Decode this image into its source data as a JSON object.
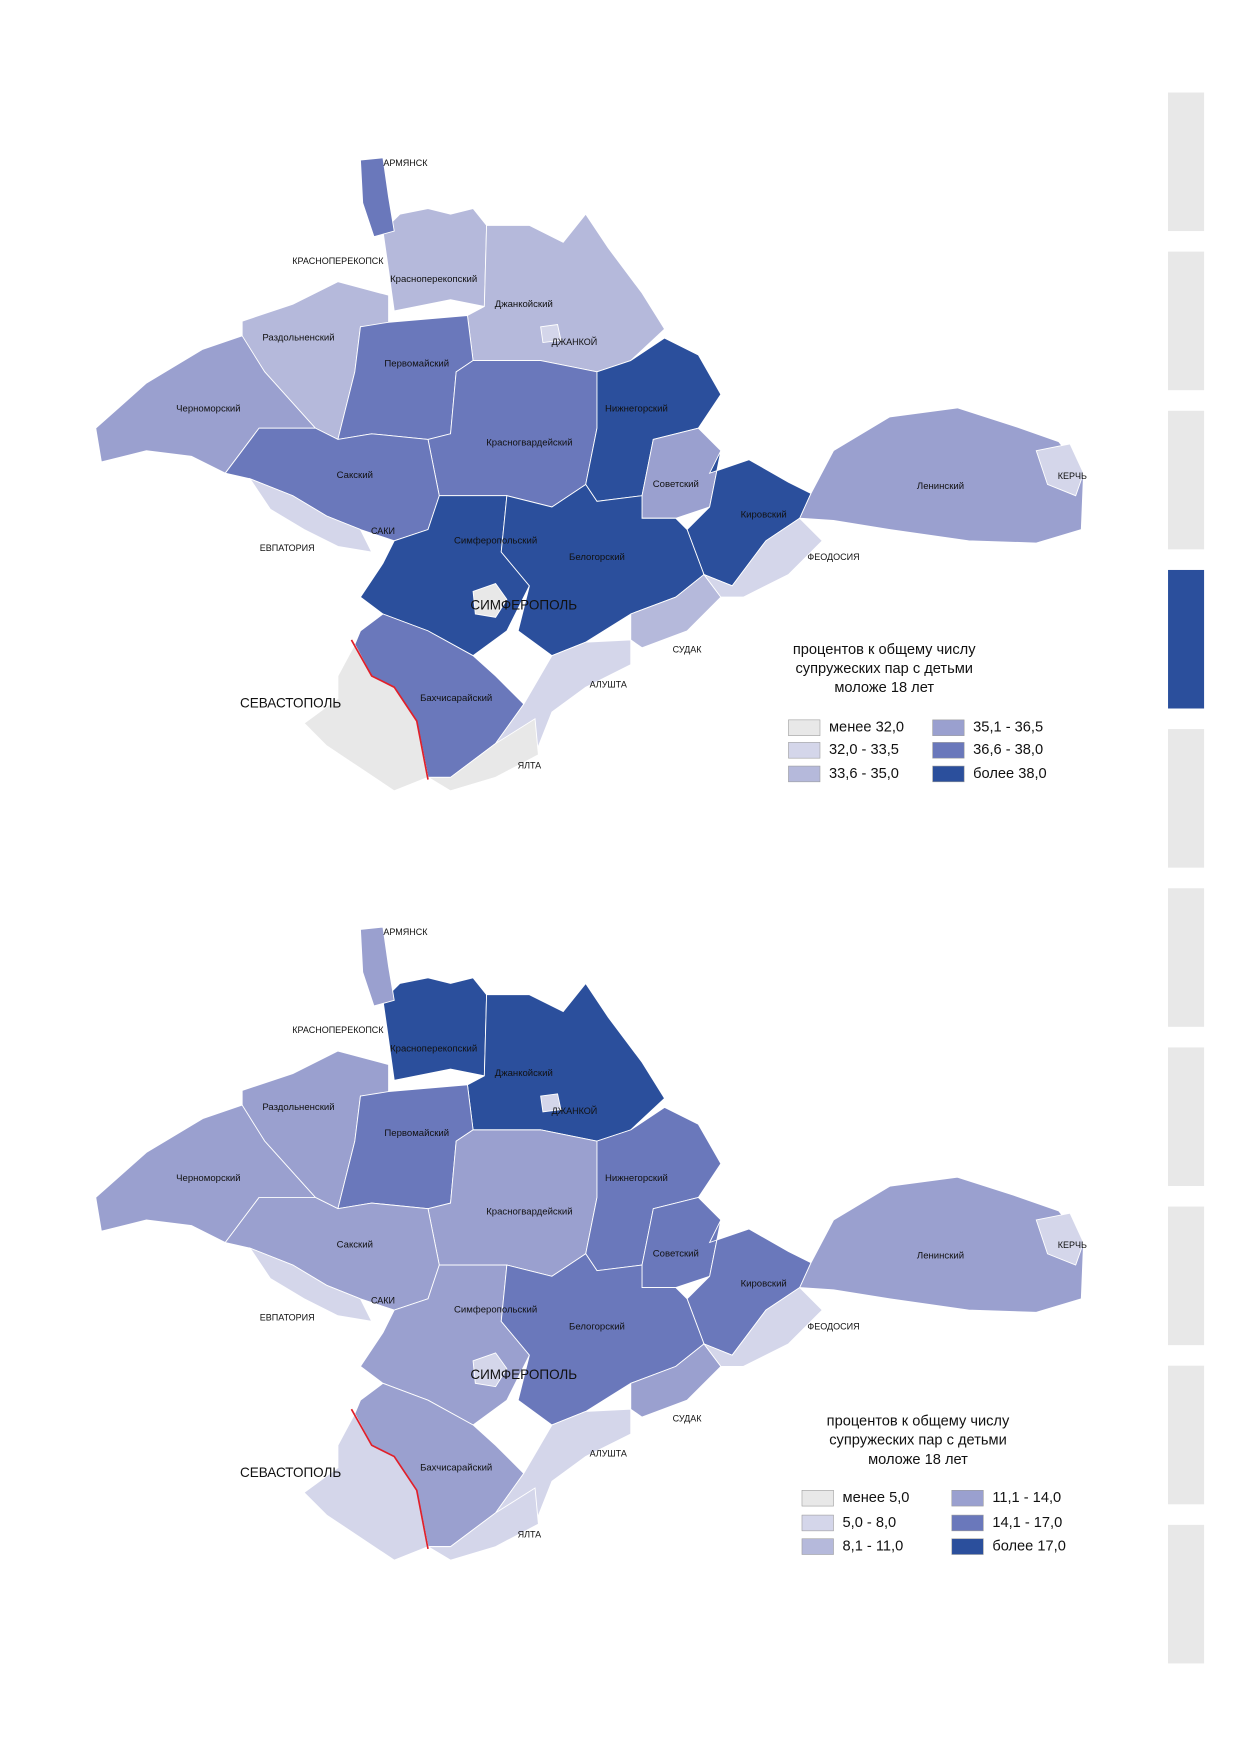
{
  "maps": [
    {
      "regions": [
        {
          "label": "Красноперекопский",
          "color": "#b5b9db"
        },
        {
          "label": "Джанкойский",
          "color": "#b5b9db"
        },
        {
          "label": "Раздольненский",
          "color": "#b5b9db"
        },
        {
          "label": "Черноморский",
          "color": "#9aa0cf"
        },
        {
          "label": "Первомайский",
          "color": "#6a78bb"
        },
        {
          "label": "Красногвардейский",
          "color": "#6a78bb"
        },
        {
          "label": "Нижнегорский",
          "color": "#2b4f9c"
        },
        {
          "label": "Советский",
          "color": "#9aa0cf"
        },
        {
          "label": "Кировский",
          "color": "#2b4f9c"
        },
        {
          "label": "Ленинский",
          "color": "#9aa0cf"
        },
        {
          "label": "Сакский",
          "color": "#6a78bb"
        },
        {
          "label": "Симферопольский",
          "color": "#2b4f9c"
        },
        {
          "label": "Белогорский",
          "color": "#2b4f9c"
        },
        {
          "label": "Бахчисарайский",
          "color": "#6a78bb"
        }
      ],
      "cities": [
        {
          "label": "АРМЯНСК",
          "color": "#6a78bb"
        },
        {
          "label": "КРАСНОПЕРЕКОПСК",
          "color": "#b5b9db"
        },
        {
          "label": "ДЖАНКОЙ",
          "color": "#d4d6ea"
        },
        {
          "label": "ЕВПАТОРИЯ",
          "color": "#d4d6ea"
        },
        {
          "label": "САКИ",
          "color": "#d4d6ea"
        },
        {
          "label": "СИМФЕРОПОЛЬ",
          "color": "#e8e8e8"
        },
        {
          "label": "СЕВАСТОПОЛЬ",
          "color": "#e8e8e8"
        },
        {
          "label": "АЛУШТА",
          "color": "#d4d6ea"
        },
        {
          "label": "СУДАК",
          "color": "#b5b9db"
        },
        {
          "label": "ЯЛТА",
          "color": "#e8e8e8"
        },
        {
          "label": "ФЕОДОСИЯ",
          "color": "#d4d6ea"
        },
        {
          "label": "КЕРЧЬ",
          "color": "#d4d6ea"
        }
      ],
      "legend": {
        "title": [
          "процентов к общему числу",
          "супружеских пар с детьми",
          "моложе 18 лет"
        ],
        "items": [
          {
            "label": "менее 32,0",
            "color": "#e8e8e8"
          },
          {
            "label": "32,0 - 33,5",
            "color": "#d4d6ea"
          },
          {
            "label": "33,6 - 35,0",
            "color": "#b5b9db"
          },
          {
            "label": "35,1 - 36,5",
            "color": "#9aa0cf"
          },
          {
            "label": "36,6 - 38,0",
            "color": "#6a78bb"
          },
          {
            "label": "более 38,0",
            "color": "#2b4f9c"
          }
        ]
      }
    },
    {
      "regions": [
        {
          "label": "Красноперекопский",
          "color": "#2b4f9c"
        },
        {
          "label": "Джанкойский",
          "color": "#2b4f9c"
        },
        {
          "label": "Раздольненский",
          "color": "#9aa0cf"
        },
        {
          "label": "Черноморский",
          "color": "#9aa0cf"
        },
        {
          "label": "Первомайский",
          "color": "#6a78bb"
        },
        {
          "label": "Красногвардейский",
          "color": "#9aa0cf"
        },
        {
          "label": "Нижнегорский",
          "color": "#6a78bb"
        },
        {
          "label": "Советский",
          "color": "#6a78bb"
        },
        {
          "label": "Кировский",
          "color": "#6a78bb"
        },
        {
          "label": "Ленинский",
          "color": "#9aa0cf"
        },
        {
          "label": "Сакский",
          "color": "#9aa0cf"
        },
        {
          "label": "Симферопольский",
          "color": "#9aa0cf"
        },
        {
          "label": "Белогорский",
          "color": "#6a78bb"
        },
        {
          "label": "Бахчисарайский",
          "color": "#9aa0cf"
        }
      ],
      "cities": [
        {
          "label": "АРМЯНСК",
          "color": "#9aa0cf"
        },
        {
          "label": "КРАСНОПЕРЕКОПСК",
          "color": "#2b4f9c"
        },
        {
          "label": "ДЖАНКОЙ",
          "color": "#d4d6ea"
        },
        {
          "label": "ЕВПАТОРИЯ",
          "color": "#d4d6ea"
        },
        {
          "label": "САКИ",
          "color": "#d4d6ea"
        },
        {
          "label": "СИМФЕРОПОЛЬ",
          "color": "#d4d6ea"
        },
        {
          "label": "СЕВАСТОПОЛЬ",
          "color": "#d4d6ea"
        },
        {
          "label": "АЛУШТА",
          "color": "#d4d6ea"
        },
        {
          "label": "СУДАК",
          "color": "#9aa0cf"
        },
        {
          "label": "ЯЛТА",
          "color": "#d4d6ea"
        },
        {
          "label": "ФЕОДОСИЯ",
          "color": "#d4d6ea"
        },
        {
          "label": "КЕРЧЬ",
          "color": "#d4d6ea"
        }
      ],
      "legend": {
        "title": [
          "процентов к общему числу",
          "супружеских пар с детьми",
          "моложе 18 лет"
        ],
        "items": [
          {
            "label": "менее 5,0",
            "color": "#e8e8e8"
          },
          {
            "label": "5,0 - 8,0",
            "color": "#d4d6ea"
          },
          {
            "label": "8,1 - 11,0",
            "color": "#b5b9db"
          },
          {
            "label": "11,1 - 14,0",
            "color": "#9aa0cf"
          },
          {
            "label": "14,1 - 17,0",
            "color": "#6a78bb"
          },
          {
            "label": "более 17,0",
            "color": "#2b4f9c"
          }
        ]
      }
    }
  ]
}
